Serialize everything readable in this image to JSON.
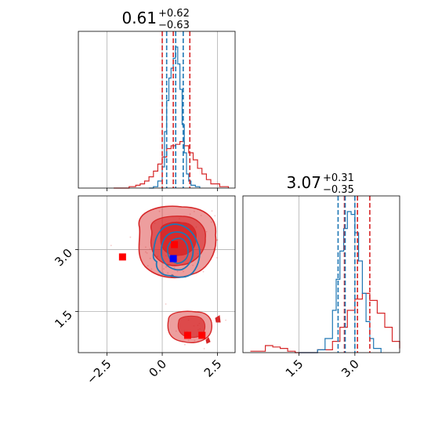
{
  "chart_data": {
    "type": "corner",
    "parameters": [
      {
        "title_value": "0.61",
        "title_plus": "+0.62",
        "title_minus": "−0.63",
        "xlim": [
          -3.8,
          3.3
        ],
        "xticks": [
          -2.5,
          0.0,
          2.5
        ],
        "xtick_labels": [
          "−2.5",
          "0.0",
          "2.5"
        ],
        "blue_quantiles": [
          0.2,
          0.61,
          0.95
        ],
        "red_quantiles": [
          0.0,
          0.5,
          1.25
        ],
        "hist_blue": {
          "x": [
            -0.6,
            -0.4,
            -0.2,
            0.0,
            0.1,
            0.2,
            0.3,
            0.4,
            0.5,
            0.6,
            0.7,
            0.8,
            0.9,
            1.0,
            1.1,
            1.2,
            1.3,
            1.5,
            1.7
          ],
          "y": [
            0.0,
            0.01,
            0.05,
            0.15,
            0.4,
            0.62,
            0.78,
            0.85,
            0.92,
            1.0,
            0.88,
            0.7,
            0.45,
            0.25,
            0.1,
            0.05,
            0.02,
            0.01,
            0.0
          ]
        },
        "hist_red": {
          "x": [
            -2.2,
            -1.5,
            -1.2,
            -1.0,
            -0.8,
            -0.6,
            -0.4,
            -0.2,
            0.0,
            0.2,
            0.4,
            0.6,
            0.8,
            1.0,
            1.2,
            1.4,
            1.6,
            1.8,
            2.0,
            2.2,
            2.6,
            3.0
          ],
          "y": [
            0.0,
            0.01,
            0.02,
            0.03,
            0.05,
            0.08,
            0.12,
            0.17,
            0.22,
            0.28,
            0.3,
            0.31,
            0.33,
            0.3,
            0.25,
            0.2,
            0.14,
            0.1,
            0.06,
            0.03,
            0.01,
            0.0
          ]
        }
      },
      {
        "title_value": "3.07",
        "title_plus": "+0.31",
        "title_minus": "−0.35",
        "xlim": [
          0.0,
          4.2
        ],
        "xticks": [
          1.5,
          3.0
        ],
        "xtick_labels": [
          "1.5",
          "3.0"
        ],
        "blue_quantiles": [
          2.55,
          2.74,
          3.0
        ],
        "red_quantiles": [
          2.72,
          3.07,
          3.4
        ],
        "hist_blue": {
          "x": [
            1.5,
            2.0,
            2.2,
            2.4,
            2.5,
            2.6,
            2.7,
            2.8,
            2.9,
            3.0,
            3.1,
            3.2,
            3.3,
            3.4,
            3.5,
            3.7
          ],
          "y": [
            0.0,
            0.02,
            0.1,
            0.3,
            0.52,
            0.72,
            0.88,
            1.0,
            0.98,
            0.85,
            0.65,
            0.42,
            0.22,
            0.1,
            0.03,
            0.0
          ]
        },
        "hist_red": {
          "x": [
            0.2,
            0.6,
            0.8,
            1.0,
            1.2,
            1.4,
            1.6,
            2.0,
            2.4,
            2.6,
            2.8,
            3.0,
            3.2,
            3.4,
            3.6,
            3.8,
            4.0,
            4.2
          ],
          "y": [
            0.01,
            0.05,
            0.04,
            0.03,
            0.01,
            0.0,
            0.0,
            0.02,
            0.08,
            0.18,
            0.3,
            0.38,
            0.42,
            0.37,
            0.28,
            0.18,
            0.08,
            0.03
          ]
        }
      }
    ],
    "joint": {
      "ylim": [
        0.5,
        4.3
      ],
      "yticks": [
        1.5,
        3.0
      ],
      "ytick_labels": [
        "1.5",
        "3.0"
      ],
      "square_markers": [
        {
          "x": -1.8,
          "y": 2.82,
          "color": "#ff0000"
        },
        {
          "x": 0.55,
          "y": 3.12,
          "color": "#ff0000"
        },
        {
          "x": 1.15,
          "y": 0.92,
          "color": "#ff0000"
        },
        {
          "x": 1.8,
          "y": 0.92,
          "color": "#ff0000"
        },
        {
          "x": 0.5,
          "y": 2.78,
          "color": "#0000ff"
        }
      ],
      "blue_point": {
        "x": 0.45,
        "y": 2.35
      }
    },
    "colors": {
      "red": "#d62728",
      "red_fill": "#d62728",
      "blue": "#1f77b4",
      "marker_red": "#ff0000",
      "marker_blue": "#0000ff",
      "grid": "#b0b0b0"
    },
    "grid": true
  }
}
